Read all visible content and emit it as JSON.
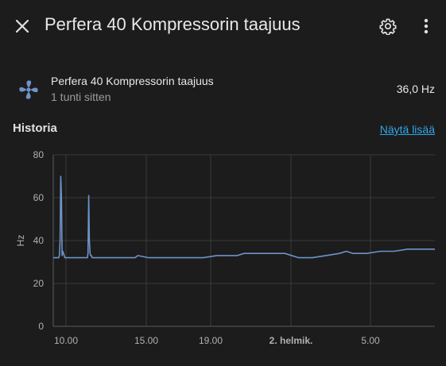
{
  "header": {
    "title": "Perfera 40 Kompressorin taajuus",
    "close_icon": "close-icon",
    "settings_icon": "gear-icon",
    "more_icon": "more-vert-icon"
  },
  "entity": {
    "icon": "fan-icon",
    "name": "Perfera 40 Kompressorin taajuus",
    "last_changed": "1 tunti sitten",
    "state": "36,0 Hz"
  },
  "history": {
    "heading": "Historia",
    "show_more": "Näytä lisää"
  },
  "colors": {
    "background": "#1c1c1c",
    "line": "#6d93c9",
    "link": "#2fa8e8"
  },
  "chart_data": {
    "type": "line",
    "ylabel": "Hz",
    "ylim": [
      0,
      80
    ],
    "yticks": [
      "0",
      "20",
      "40",
      "60",
      "80"
    ],
    "xticks": [
      {
        "label": "10.00",
        "bold": false
      },
      {
        "label": "15.00",
        "bold": false
      },
      {
        "label": "19.00",
        "bold": false
      },
      {
        "label": "2. helmik.",
        "bold": true
      },
      {
        "label": "5.00",
        "bold": false
      }
    ],
    "grid": true,
    "series": [
      {
        "x": [
          0,
          0.4,
          0.45,
          0.5,
          0.55,
          0.6,
          0.65,
          0.7,
          0.75,
          0.8,
          0.85,
          1.0,
          2.0,
          2.5,
          2.55,
          2.6,
          2.65,
          2.7,
          2.75,
          2.8,
          2.85,
          3.0,
          4.0,
          5.0,
          6.0,
          6.2,
          7.0,
          8.0,
          9.0,
          10.0,
          10.5,
          11.0,
          12.0,
          13.0,
          13.5,
          14.0,
          14.5,
          15.0,
          16.0,
          17.0,
          18.0,
          19.0,
          20.0,
          21.0,
          21.5,
          22.0,
          22.5,
          23.0,
          24.0,
          25.0,
          26.0,
          27.0,
          28.0
        ],
        "y": [
          32,
          32,
          33,
          40,
          70,
          60,
          33,
          35,
          34,
          33,
          32,
          32,
          32,
          32,
          34,
          61,
          40,
          34,
          33,
          33,
          32,
          32,
          32,
          32,
          32,
          33,
          32,
          32,
          32,
          32,
          32,
          32,
          33,
          33,
          33,
          34,
          34,
          34,
          34,
          34,
          32,
          32,
          33,
          34,
          35,
          34,
          34,
          34,
          35,
          35,
          36,
          36,
          36
        ]
      }
    ]
  }
}
